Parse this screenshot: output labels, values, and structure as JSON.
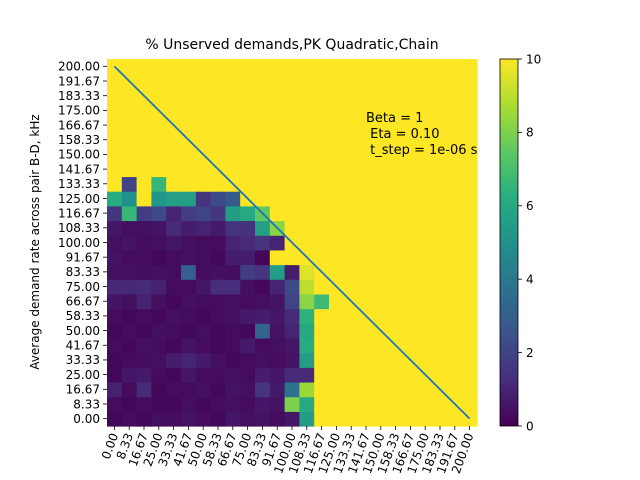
{
  "chart_data": {
    "type": "heatmap",
    "title": "% Unserved demands,PK Quadratic,Chain",
    "xlabel": "",
    "ylabel": "Average demand rate across pair B-D, kHz",
    "x_ticks": [
      "0.00",
      "8.33",
      "16.67",
      "25.00",
      "33.33",
      "41.67",
      "50.00",
      "58.33",
      "66.67",
      "75.00",
      "83.33",
      "91.67",
      "100.00",
      "108.33",
      "116.67",
      "125.00",
      "133.33",
      "141.67",
      "150.00",
      "158.33",
      "166.67",
      "175.00",
      "183.33",
      "191.67",
      "200.00"
    ],
    "y_ticks": [
      "0.00",
      "8.33",
      "16.67",
      "25.00",
      "33.33",
      "41.67",
      "50.00",
      "58.33",
      "66.67",
      "75.00",
      "83.33",
      "91.67",
      "100.00",
      "108.33",
      "116.67",
      "125.00",
      "133.33",
      "141.67",
      "150.00",
      "158.33",
      "166.67",
      "175.00",
      "183.33",
      "191.67",
      "200.00"
    ],
    "colorbar": {
      "min": 0,
      "max": 10,
      "ticks": [
        "0",
        "2",
        "4",
        "6",
        "8",
        "10"
      ],
      "colormap": "viridis"
    },
    "annotation": [
      "Beta = 1",
      " Eta = 0.10",
      " t_step = 1e-06 s"
    ],
    "diagonal_line": {
      "from": [
        0,
        200
      ],
      "to": [
        200,
        0
      ],
      "color": "#1f77b4"
    },
    "grid": false,
    "values": [
      [
        0.2,
        0.3,
        0.2,
        0.4,
        0.3,
        0.5,
        0.3,
        0.2,
        0.6,
        0.4,
        0.5,
        0.3,
        0.6,
        5.5,
        10,
        10,
        10,
        10,
        10,
        10,
        10,
        10,
        10,
        10,
        10
      ],
      [
        0.3,
        0.2,
        0.3,
        0.2,
        0.2,
        0.4,
        0.2,
        0.3,
        0.4,
        0.3,
        0.6,
        0.5,
        8,
        6,
        10,
        10,
        10,
        10,
        10,
        10,
        10,
        10,
        10,
        10,
        10
      ],
      [
        0.9,
        0.3,
        1.2,
        0.2,
        0.3,
        0.3,
        0.4,
        0.2,
        0.5,
        0.4,
        1.5,
        0.7,
        3.8,
        8.5,
        10,
        10,
        10,
        10,
        10,
        10,
        10,
        10,
        10,
        10,
        10
      ],
      [
        0.2,
        0.6,
        0.7,
        0.3,
        0.2,
        0.6,
        0.3,
        0.3,
        0.4,
        0.3,
        0.8,
        0.6,
        1.2,
        1.2,
        10,
        10,
        10,
        10,
        10,
        10,
        10,
        10,
        10,
        10,
        10
      ],
      [
        0.2,
        0.3,
        0.3,
        0.4,
        0.8,
        1.0,
        0.7,
        0.4,
        0.2,
        0.3,
        0.4,
        0.3,
        0.5,
        5.5,
        10,
        10,
        10,
        10,
        10,
        10,
        10,
        10,
        10,
        10,
        10
      ],
      [
        0.3,
        0.2,
        0.4,
        0.3,
        0.2,
        0.5,
        0.3,
        0.2,
        0.3,
        0.7,
        0.3,
        0.4,
        0.6,
        6.2,
        10,
        10,
        10,
        10,
        10,
        10,
        10,
        10,
        10,
        10,
        10
      ],
      [
        0.2,
        0.3,
        0.2,
        0.4,
        0.3,
        0.2,
        0.4,
        0.2,
        0.3,
        0.2,
        3.2,
        0.5,
        1.0,
        6.0,
        10,
        10,
        10,
        10,
        10,
        10,
        10,
        10,
        10,
        10,
        10
      ],
      [
        0.3,
        0.2,
        0.3,
        0.2,
        0.4,
        0.3,
        0.2,
        0.3,
        0.4,
        0.7,
        0.8,
        0.6,
        1.2,
        6.4,
        10,
        10,
        10,
        10,
        10,
        10,
        10,
        10,
        10,
        10,
        10
      ],
      [
        0.5,
        0.4,
        1.0,
        0.4,
        0.2,
        0.4,
        0.3,
        0.3,
        0.4,
        0.3,
        0.4,
        0.5,
        2.0,
        8.2,
        6.8,
        10,
        10,
        10,
        10,
        10,
        10,
        10,
        10,
        10,
        10
      ],
      [
        1.1,
        1.1,
        1.2,
        0.9,
        0.3,
        0.3,
        0.6,
        1.3,
        1.3,
        0.4,
        0.2,
        1.0,
        2.2,
        9.0,
        10,
        10,
        10,
        10,
        10,
        10,
        10,
        10,
        10,
        10,
        10
      ],
      [
        0.4,
        0.4,
        0.3,
        0.4,
        0.3,
        3.0,
        0.3,
        0.4,
        0.3,
        1.8,
        1.5,
        5.5,
        0.8,
        9.5,
        10,
        10,
        10,
        10,
        10,
        10,
        10,
        10,
        10,
        10,
        10
      ],
      [
        0.5,
        0.3,
        0.3,
        0.2,
        0.3,
        0.4,
        0.3,
        0.2,
        0.8,
        0.8,
        0.2,
        10,
        10,
        10,
        10,
        10,
        10,
        10,
        10,
        10,
        10,
        10,
        10,
        10,
        10
      ],
      [
        0.4,
        0.5,
        0.3,
        0.4,
        0.6,
        0.4,
        0.3,
        0.3,
        1.0,
        1.2,
        1.5,
        1.0,
        10,
        10,
        10,
        10,
        10,
        10,
        10,
        10,
        10,
        10,
        10,
        10,
        10
      ],
      [
        0.6,
        0.4,
        0.4,
        0.5,
        1.2,
        0.8,
        1.0,
        0.7,
        1.5,
        1.4,
        5.6,
        8.2,
        10,
        10,
        10,
        10,
        10,
        10,
        10,
        10,
        10,
        10,
        10,
        10,
        10
      ],
      [
        1.6,
        6.6,
        1.8,
        2.2,
        1.0,
        1.8,
        2.0,
        1.5,
        5.5,
        6.0,
        7.5,
        10,
        10,
        10,
        10,
        10,
        10,
        10,
        10,
        10,
        10,
        10,
        10,
        10,
        10
      ],
      [
        6.2,
        5.0,
        10,
        5.2,
        5.6,
        5.6,
        1.5,
        2.2,
        2.8,
        10,
        10,
        10,
        10,
        10,
        10,
        10,
        10,
        10,
        10,
        10,
        10,
        10,
        10,
        10,
        10
      ],
      [
        10,
        2.0,
        10,
        6.6,
        10,
        10,
        10,
        10,
        10,
        10,
        10,
        10,
        10,
        10,
        10,
        10,
        10,
        10,
        10,
        10,
        10,
        10,
        10,
        10,
        10
      ],
      [
        10,
        10,
        10,
        10,
        10,
        10,
        10,
        10,
        10,
        10,
        10,
        10,
        10,
        10,
        10,
        10,
        10,
        10,
        10,
        10,
        10,
        10,
        10,
        10,
        10
      ],
      [
        10,
        10,
        10,
        10,
        10,
        10,
        10,
        10,
        10,
        10,
        10,
        10,
        10,
        10,
        10,
        10,
        10,
        10,
        10,
        10,
        10,
        10,
        10,
        10,
        10
      ],
      [
        10,
        10,
        10,
        10,
        10,
        10,
        10,
        10,
        10,
        10,
        10,
        10,
        10,
        10,
        10,
        10,
        10,
        10,
        10,
        10,
        10,
        10,
        10,
        10,
        10
      ],
      [
        10,
        10,
        10,
        10,
        10,
        10,
        10,
        10,
        10,
        10,
        10,
        10,
        10,
        10,
        10,
        10,
        10,
        10,
        10,
        10,
        10,
        10,
        10,
        10,
        10
      ],
      [
        10,
        10,
        10,
        10,
        10,
        10,
        10,
        10,
        10,
        10,
        10,
        10,
        10,
        10,
        10,
        10,
        10,
        10,
        10,
        10,
        10,
        10,
        10,
        10,
        10
      ],
      [
        10,
        10,
        10,
        10,
        10,
        10,
        10,
        10,
        10,
        10,
        10,
        10,
        10,
        10,
        10,
        10,
        10,
        10,
        10,
        10,
        10,
        10,
        10,
        10,
        10
      ],
      [
        10,
        10,
        10,
        10,
        10,
        10,
        10,
        10,
        10,
        10,
        10,
        10,
        10,
        10,
        10,
        10,
        10,
        10,
        10,
        10,
        10,
        10,
        10,
        10,
        10
      ],
      [
        10,
        10,
        10,
        10,
        10,
        10,
        10,
        10,
        10,
        10,
        10,
        10,
        10,
        10,
        10,
        10,
        10,
        10,
        10,
        10,
        10,
        10,
        10,
        10,
        10
      ]
    ]
  }
}
